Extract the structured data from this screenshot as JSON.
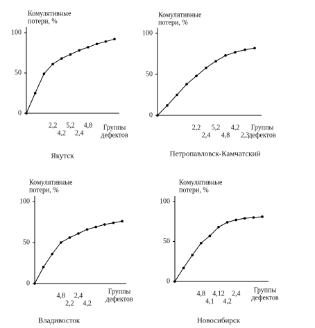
{
  "chart_data": [
    {
      "type": "line",
      "title": "Якутск",
      "y_label": [
        "Комулятивные",
        "потери, %"
      ],
      "x_label": [
        "Группы",
        "дефектов"
      ],
      "categories": [
        null,
        null,
        null,
        "2,2",
        "4,2",
        "5,2",
        "2,4",
        "4,8",
        null,
        null,
        null
      ],
      "values": [
        0,
        25,
        49,
        61,
        68,
        73,
        78,
        82,
        86,
        89,
        92
      ],
      "color": "#000000",
      "ylim": [
        0,
        100
      ],
      "yticks": [
        0,
        50,
        100
      ]
    },
    {
      "type": "line",
      "title": "Петропавловск-Камчатский",
      "y_label": [
        "Комулятивные",
        "потери, %"
      ],
      "x_label": [
        "Группы",
        "дефектов"
      ],
      "categories": [
        null,
        null,
        null,
        null,
        "2,2",
        "2,4",
        "5,2",
        "4,8",
        "4,2",
        "2,3",
        null
      ],
      "values": [
        0,
        12,
        25,
        38,
        48,
        58,
        66,
        73,
        77,
        80,
        82
      ],
      "color": "#000000",
      "ylim": [
        0,
        100
      ],
      "yticks": [
        0,
        50,
        100
      ]
    },
    {
      "type": "line",
      "title": "Владивосток",
      "y_label": [
        "Комулятивные",
        "потери, %"
      ],
      "x_label": [
        "Группы",
        "дефектов"
      ],
      "categories": [
        null,
        null,
        null,
        "4,8",
        "2,2",
        "2,4",
        "4,2",
        null,
        null,
        null,
        null
      ],
      "values": [
        0,
        20,
        36,
        50,
        56,
        61,
        66,
        69,
        72,
        74,
        76
      ],
      "color": "#000000",
      "ylim": [
        0,
        100
      ],
      "yticks": [
        0,
        50,
        100
      ]
    },
    {
      "type": "line",
      "title": "Новосибирск",
      "y_label": [
        "Комулятивные",
        "потери, %"
      ],
      "x_label": [
        "Группы",
        "дефектов"
      ],
      "categories": [
        null,
        null,
        null,
        "4,8",
        "4,1",
        "4,12",
        "4,2",
        "2,4",
        null,
        null,
        null
      ],
      "values": [
        0,
        17,
        33,
        48,
        57,
        68,
        74,
        77,
        79,
        80,
        81
      ],
      "color": "#000000",
      "ylim": [
        0,
        100
      ],
      "yticks": [
        0,
        50,
        100
      ]
    }
  ]
}
